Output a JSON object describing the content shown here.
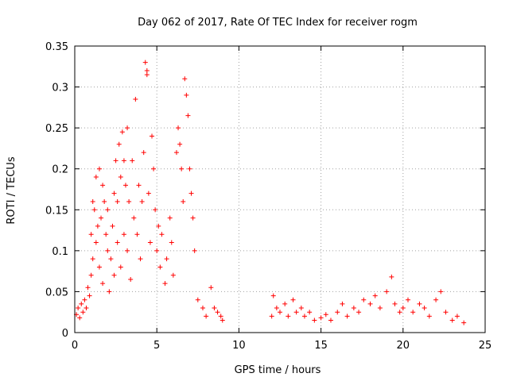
{
  "chart_data": {
    "type": "scatter",
    "title": "Day 062 of 2017, Rate Of TEC Index for receiver rogm",
    "xlabel": "GPS time / hours",
    "ylabel": "ROTI / TECUs",
    "xlim": [
      0,
      25
    ],
    "ylim": [
      0,
      0.35
    ],
    "xticks": [
      0,
      5,
      10,
      15,
      20,
      25
    ],
    "xtick_labels": [
      "0",
      "5",
      "10",
      "15",
      "20",
      "25"
    ],
    "yticks": [
      0,
      0.05,
      0.1,
      0.15,
      0.2,
      0.25,
      0.3,
      0.35
    ],
    "ytick_labels": [
      "0",
      "0.05",
      "0.1",
      "0.15",
      "0.2",
      "0.25",
      "0.3",
      "0.35"
    ],
    "grid": true,
    "marker": "+",
    "color": "#ff0000",
    "series": [
      {
        "name": "ROTI",
        "points": [
          [
            0.1,
            0.022
          ],
          [
            0.2,
            0.03
          ],
          [
            0.3,
            0.018
          ],
          [
            0.4,
            0.035
          ],
          [
            0.5,
            0.025
          ],
          [
            0.6,
            0.04
          ],
          [
            0.7,
            0.03
          ],
          [
            0.8,
            0.055
          ],
          [
            0.9,
            0.045
          ],
          [
            1.0,
            0.07
          ],
          [
            1.0,
            0.12
          ],
          [
            1.1,
            0.09
          ],
          [
            1.1,
            0.16
          ],
          [
            1.2,
            0.15
          ],
          [
            1.3,
            0.11
          ],
          [
            1.3,
            0.19
          ],
          [
            1.4,
            0.13
          ],
          [
            1.5,
            0.2
          ],
          [
            1.5,
            0.08
          ],
          [
            1.6,
            0.14
          ],
          [
            1.7,
            0.18
          ],
          [
            1.7,
            0.06
          ],
          [
            1.8,
            0.16
          ],
          [
            1.9,
            0.12
          ],
          [
            2.0,
            0.1
          ],
          [
            2.0,
            0.15
          ],
          [
            2.1,
            0.05
          ],
          [
            2.2,
            0.09
          ],
          [
            2.3,
            0.13
          ],
          [
            2.4,
            0.17
          ],
          [
            2.4,
            0.07
          ],
          [
            2.5,
            0.21
          ],
          [
            2.6,
            0.16
          ],
          [
            2.6,
            0.11
          ],
          [
            2.7,
            0.23
          ],
          [
            2.8,
            0.19
          ],
          [
            2.8,
            0.08
          ],
          [
            2.9,
            0.245
          ],
          [
            3.0,
            0.21
          ],
          [
            3.0,
            0.12
          ],
          [
            3.1,
            0.18
          ],
          [
            3.2,
            0.25
          ],
          [
            3.2,
            0.1
          ],
          [
            3.3,
            0.16
          ],
          [
            3.4,
            0.065
          ],
          [
            3.5,
            0.21
          ],
          [
            3.6,
            0.14
          ],
          [
            3.7,
            0.285
          ],
          [
            3.8,
            0.12
          ],
          [
            3.9,
            0.18
          ],
          [
            4.0,
            0.09
          ],
          [
            4.1,
            0.16
          ],
          [
            4.2,
            0.22
          ],
          [
            4.3,
            0.33
          ],
          [
            4.4,
            0.32
          ],
          [
            4.4,
            0.315
          ],
          [
            4.5,
            0.17
          ],
          [
            4.6,
            0.11
          ],
          [
            4.7,
            0.24
          ],
          [
            4.8,
            0.2
          ],
          [
            4.9,
            0.15
          ],
          [
            5.0,
            0.1
          ],
          [
            5.1,
            0.13
          ],
          [
            5.2,
            0.08
          ],
          [
            5.3,
            0.12
          ],
          [
            5.5,
            0.06
          ],
          [
            5.6,
            0.09
          ],
          [
            5.8,
            0.14
          ],
          [
            5.9,
            0.11
          ],
          [
            6.0,
            0.07
          ],
          [
            6.2,
            0.22
          ],
          [
            6.3,
            0.25
          ],
          [
            6.4,
            0.23
          ],
          [
            6.5,
            0.2
          ],
          [
            6.6,
            0.16
          ],
          [
            6.7,
            0.31
          ],
          [
            6.8,
            0.29
          ],
          [
            6.9,
            0.265
          ],
          [
            7.0,
            0.2
          ],
          [
            7.1,
            0.17
          ],
          [
            7.2,
            0.14
          ],
          [
            7.3,
            0.1
          ],
          [
            7.5,
            0.04
          ],
          [
            7.8,
            0.03
          ],
          [
            8.0,
            0.02
          ],
          [
            8.3,
            0.055
          ],
          [
            8.5,
            0.03
          ],
          [
            8.7,
            0.025
          ],
          [
            8.9,
            0.02
          ],
          [
            9.0,
            0.015
          ],
          [
            12.0,
            0.02
          ],
          [
            12.1,
            0.045
          ],
          [
            12.3,
            0.03
          ],
          [
            12.5,
            0.025
          ],
          [
            12.8,
            0.035
          ],
          [
            13.0,
            0.02
          ],
          [
            13.3,
            0.04
          ],
          [
            13.5,
            0.025
          ],
          [
            13.8,
            0.03
          ],
          [
            14.0,
            0.02
          ],
          [
            14.3,
            0.025
          ],
          [
            14.6,
            0.015
          ],
          [
            15.0,
            0.018
          ],
          [
            15.3,
            0.022
          ],
          [
            15.6,
            0.015
          ],
          [
            16.0,
            0.025
          ],
          [
            16.3,
            0.035
          ],
          [
            16.6,
            0.02
          ],
          [
            17.0,
            0.03
          ],
          [
            17.3,
            0.025
          ],
          [
            17.6,
            0.04
          ],
          [
            18.0,
            0.035
          ],
          [
            18.3,
            0.045
          ],
          [
            18.6,
            0.03
          ],
          [
            19.0,
            0.05
          ],
          [
            19.3,
            0.068
          ],
          [
            19.5,
            0.035
          ],
          [
            19.8,
            0.025
          ],
          [
            20.0,
            0.03
          ],
          [
            20.3,
            0.04
          ],
          [
            20.6,
            0.025
          ],
          [
            21.0,
            0.035
          ],
          [
            21.3,
            0.03
          ],
          [
            21.6,
            0.02
          ],
          [
            22.0,
            0.04
          ],
          [
            22.3,
            0.05
          ],
          [
            22.6,
            0.025
          ],
          [
            23.0,
            0.015
          ],
          [
            23.3,
            0.02
          ],
          [
            23.7,
            0.012
          ]
        ]
      }
    ]
  }
}
